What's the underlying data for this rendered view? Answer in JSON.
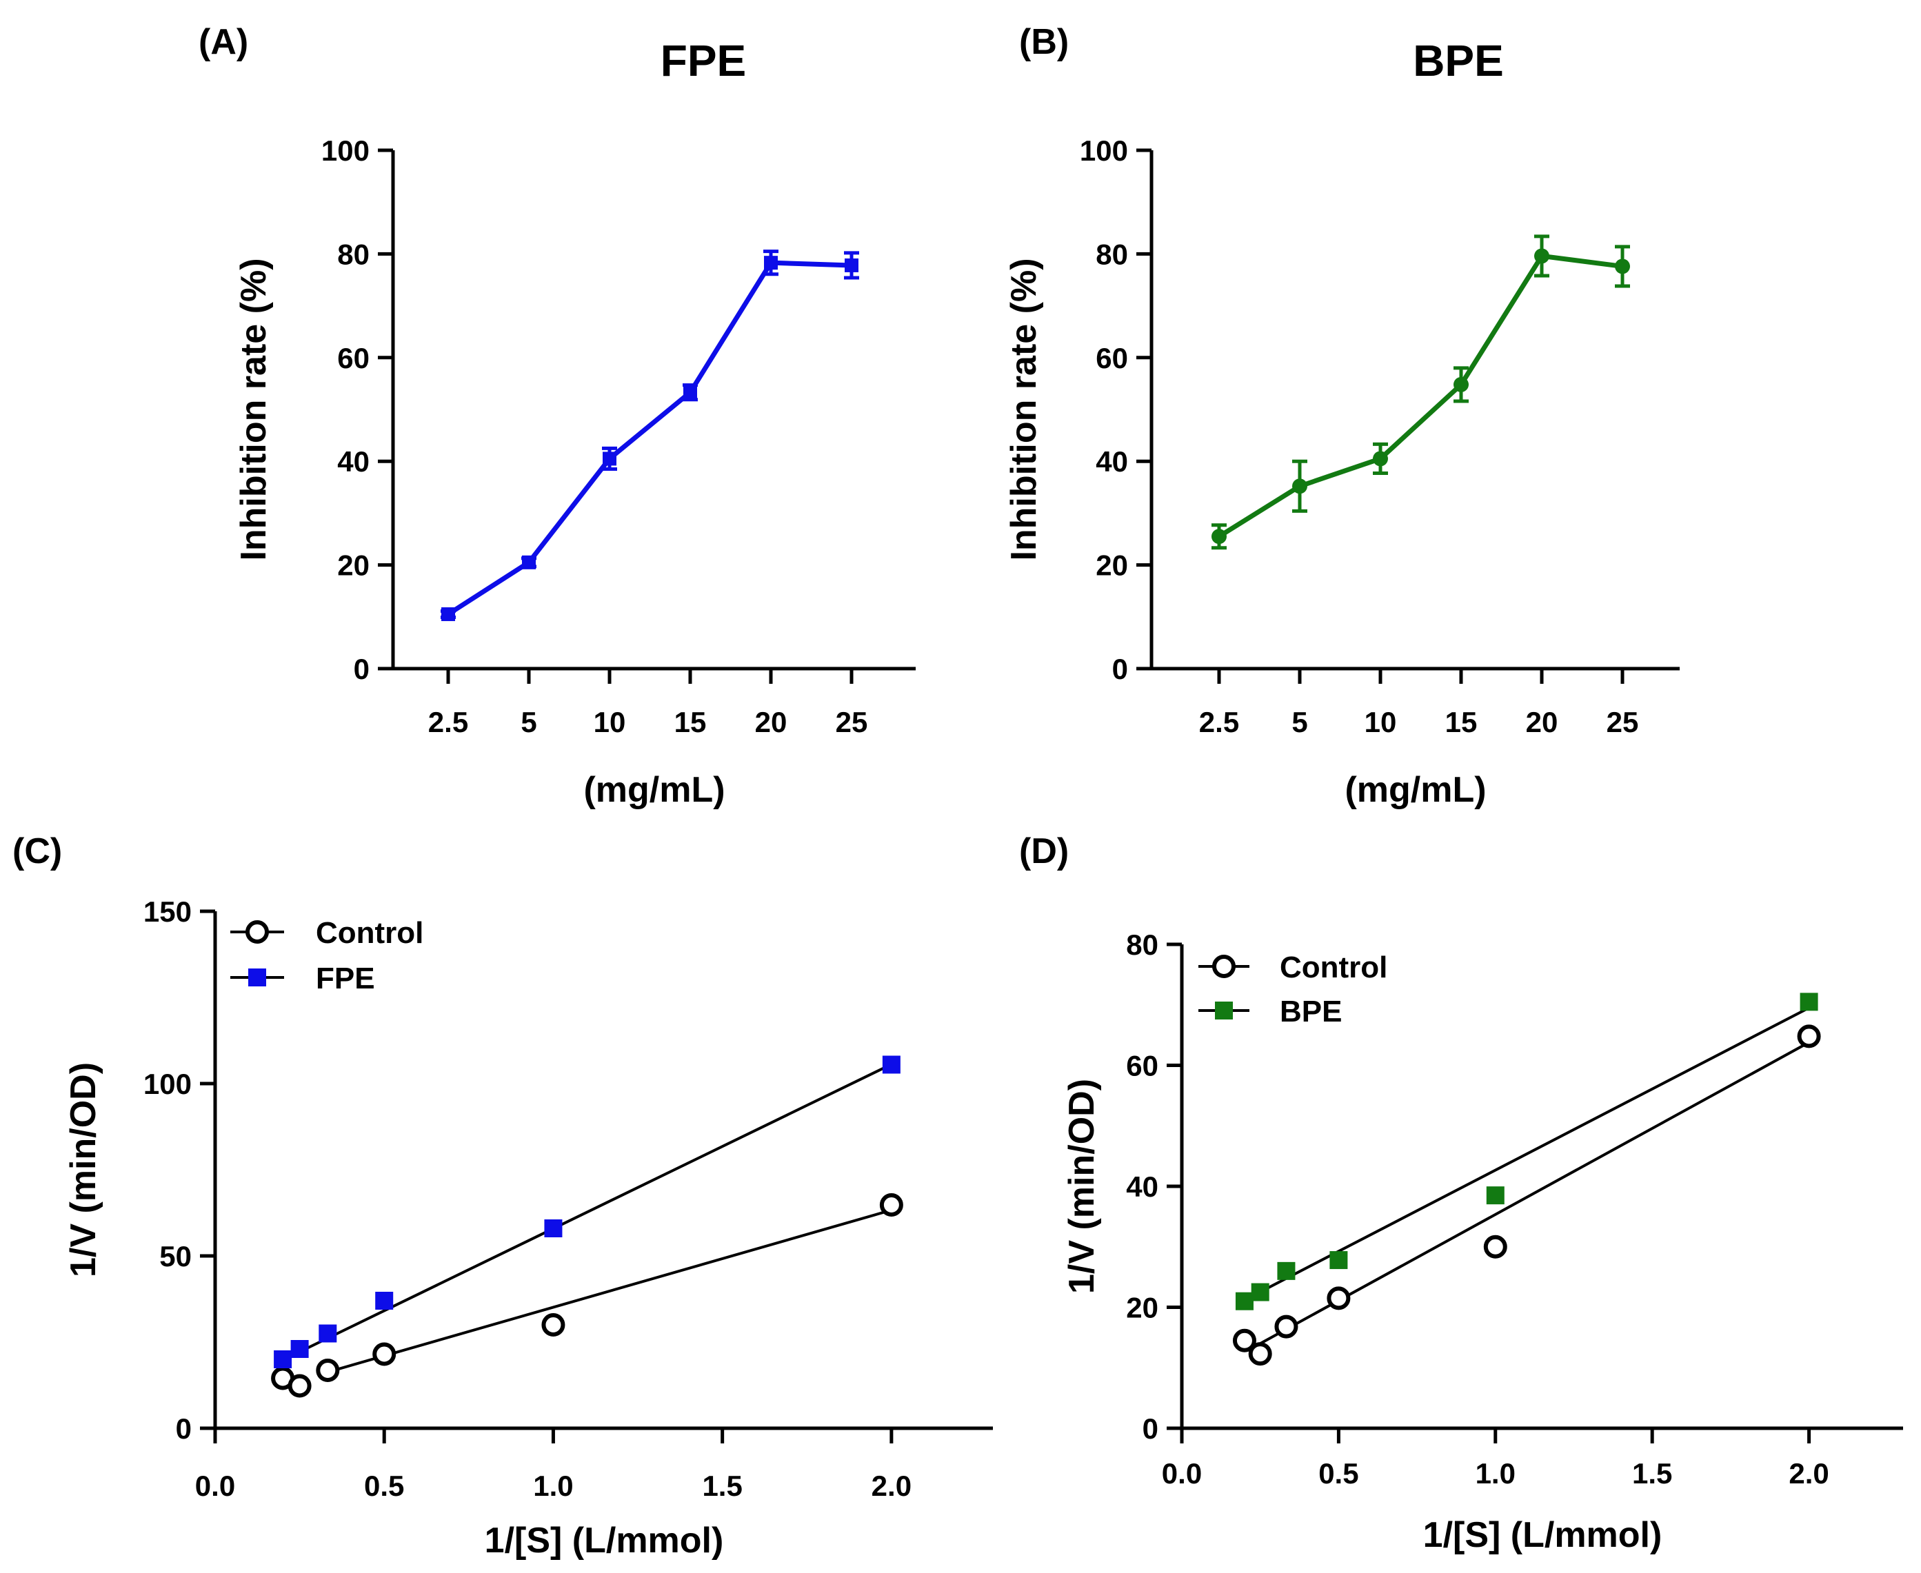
{
  "chart_data": [
    {
      "type": "line",
      "panel": "(A)",
      "title": "FPE",
      "xlabel": "(mg/mL)",
      "ylabel": "Inhibition rate (%)",
      "categories": [
        "2.5",
        "5",
        "10",
        "15",
        "20",
        "25"
      ],
      "ylim": [
        0,
        100
      ],
      "yticks": [
        "0",
        "20",
        "40",
        "60",
        "80",
        "100"
      ],
      "series": [
        {
          "name": "FPE",
          "marker": "square",
          "values": [
            10.5,
            20.5,
            40.5,
            53.3,
            78.3,
            77.8
          ],
          "errors": [
            0.6,
            0.8,
            2.0,
            1.4,
            2.2,
            2.4
          ]
        }
      ],
      "color": "#0d0de8"
    },
    {
      "type": "line",
      "panel": "(B)",
      "title": "BPE",
      "xlabel": "(mg/mL)",
      "ylabel": "Inhibition rate (%)",
      "categories": [
        "2.5",
        "5",
        "10",
        "15",
        "20",
        "25"
      ],
      "ylim": [
        0,
        100
      ],
      "yticks": [
        "0",
        "20",
        "40",
        "60",
        "80",
        "100"
      ],
      "series": [
        {
          "name": "BPE",
          "marker": "circle",
          "values": [
            25.5,
            35.2,
            40.5,
            54.8,
            79.6,
            77.6
          ],
          "errors": [
            2.2,
            4.8,
            2.8,
            3.2,
            3.8,
            3.8
          ]
        }
      ],
      "color": "#127a12"
    },
    {
      "type": "scatter",
      "panel": "(C)",
      "xlabel": "1/[S] (L/mmol)",
      "ylabel": "1/V (min/OD)",
      "xlim": [
        0,
        2.3
      ],
      "ylim": [
        0,
        150
      ],
      "xticks": [
        "0.0",
        "0.5",
        "1.0",
        "1.5",
        "2.0"
      ],
      "yticks": [
        "0",
        "50",
        "100",
        "150"
      ],
      "x": [
        0.2,
        0.25,
        0.333,
        0.5,
        1.0,
        2.0
      ],
      "series": [
        {
          "name": "Control",
          "marker": "open-circle",
          "values": [
            14.5,
            12.3,
            16.8,
            21.5,
            30.0,
            64.8
          ],
          "fit": [
            0.333,
            16.3,
            2.0,
            63.3
          ]
        },
        {
          "name": "FPE",
          "marker": "square",
          "values": [
            20.0,
            23.0,
            27.5,
            37.0,
            58.0,
            105.5
          ],
          "fit": [
            0.2,
            19.8,
            2.0,
            105.6
          ]
        }
      ],
      "legend": [
        "Control",
        "FPE"
      ],
      "color": "#0d0de8"
    },
    {
      "type": "scatter",
      "panel": "(D)",
      "xlabel": "1/[S] (L/mmol)",
      "ylabel": "1/V (min/OD)",
      "xlim": [
        0,
        2.3
      ],
      "ylim": [
        0,
        80
      ],
      "xticks": [
        "0.0",
        "0.5",
        "1.0",
        "1.5",
        "2.0"
      ],
      "yticks": [
        "0",
        "20",
        "40",
        "60",
        "80"
      ],
      "x": [
        0.2,
        0.25,
        0.333,
        0.5,
        1.0,
        2.0
      ],
      "series": [
        {
          "name": "Control",
          "marker": "open-circle",
          "values": [
            14.5,
            12.3,
            16.8,
            21.5,
            30.0,
            64.8
          ],
          "fit": [
            0.25,
            14.0,
            2.0,
            63.8
          ]
        },
        {
          "name": "BPE",
          "marker": "square",
          "values": [
            21.0,
            22.5,
            26.0,
            27.8,
            38.5,
            70.5
          ],
          "fit": [
            0.2,
            21.2,
            2.0,
            69.5
          ]
        }
      ],
      "legend": [
        "Control",
        "BPE"
      ],
      "color": "#127a12"
    }
  ]
}
